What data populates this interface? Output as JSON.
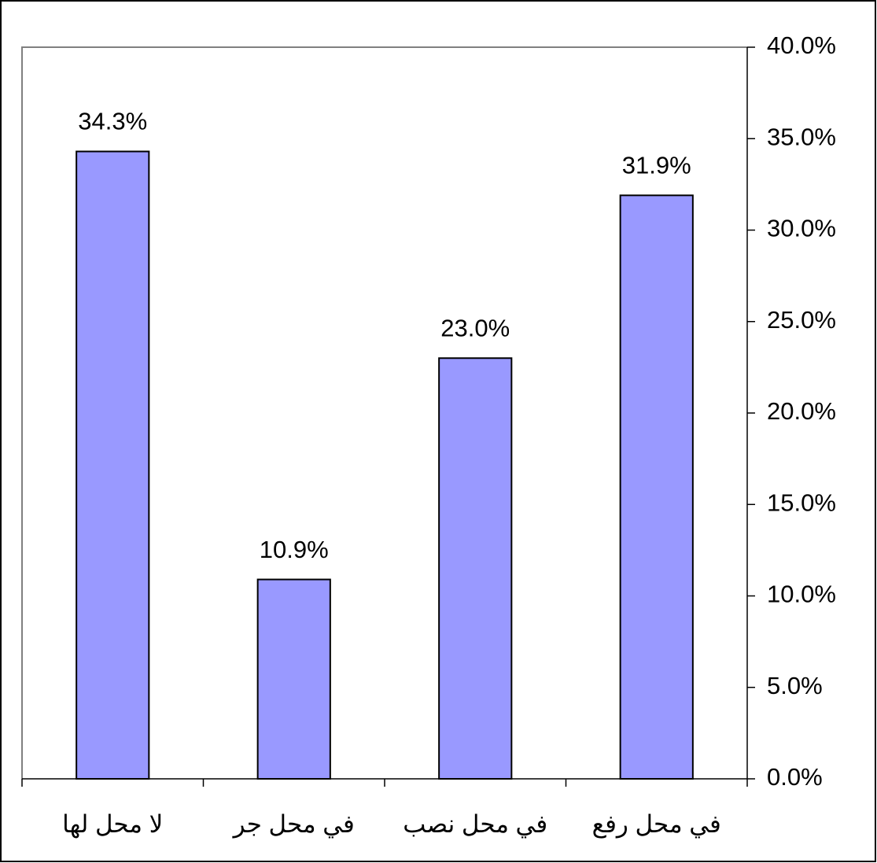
{
  "chart_data": {
    "type": "bar",
    "categories": [
      "لا محل لها",
      "في محل جر",
      "في محل نصب",
      "في محل رفع"
    ],
    "values": [
      34.3,
      10.9,
      23.0,
      31.9
    ],
    "value_labels": [
      "34.3%",
      "10.9%",
      "23.0%",
      "31.9%"
    ],
    "color": "#9999ff",
    "ylim": [
      0,
      40
    ],
    "yticks": [
      {
        "value": 0,
        "label": "0.0%"
      },
      {
        "value": 5,
        "label": "5.0%"
      },
      {
        "value": 10,
        "label": "10.0%"
      },
      {
        "value": 15,
        "label": "15.0%"
      },
      {
        "value": 20,
        "label": "20.0%"
      },
      {
        "value": 25,
        "label": "25.0%"
      },
      {
        "value": 30,
        "label": "30.0%"
      },
      {
        "value": 35,
        "label": "35.0%"
      },
      {
        "value": 40,
        "label": "40.0%"
      }
    ],
    "y_axis_side": "right"
  }
}
